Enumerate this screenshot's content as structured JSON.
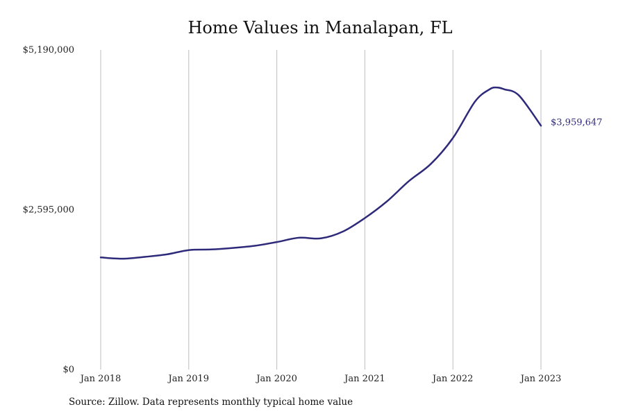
{
  "chart_data": {
    "type": "line",
    "title": "Home Values in Manalapan, FL",
    "xlabel": "",
    "ylabel": "",
    "ylim": [
      0,
      5190000
    ],
    "xlim": [
      "2018-01",
      "2023-01"
    ],
    "y_ticks": [
      {
        "value": 0,
        "label": "$0"
      },
      {
        "value": 2595000,
        "label": "$2,595,000"
      },
      {
        "value": 5190000,
        "label": "$5,190,000"
      }
    ],
    "x_ticks": [
      {
        "value": "2018-01",
        "label": "Jan 2018"
      },
      {
        "value": "2019-01",
        "label": "Jan 2019"
      },
      {
        "value": "2020-01",
        "label": "Jan 2020"
      },
      {
        "value": "2021-01",
        "label": "Jan 2021"
      },
      {
        "value": "2022-01",
        "label": "Jan 2022"
      },
      {
        "value": "2023-01",
        "label": "Jan 2023"
      }
    ],
    "grid": "vertical",
    "line_color": "#2e2a7a",
    "grid_color": "#bdbdbd",
    "series": [
      {
        "x": [
          "2018-01",
          "2018-04",
          "2018-07",
          "2018-10",
          "2019-01",
          "2019-04",
          "2019-07",
          "2019-10",
          "2020-01",
          "2020-04",
          "2020-07",
          "2020-10",
          "2021-01",
          "2021-04",
          "2021-07",
          "2021-10",
          "2022-01",
          "2022-04",
          "2022-06",
          "2022-07",
          "2022-08",
          "2022-10",
          "2023-01"
        ],
        "values": [
          1820000,
          1800000,
          1830000,
          1870000,
          1940000,
          1950000,
          1975000,
          2010000,
          2070000,
          2140000,
          2130000,
          2240000,
          2460000,
          2730000,
          3060000,
          3340000,
          3760000,
          4350000,
          4550000,
          4580000,
          4550000,
          4450000,
          3959647
        ]
      }
    ],
    "end_label": "$3,959,647",
    "source": "Source: Zillow. Data represents monthly typical home value"
  }
}
